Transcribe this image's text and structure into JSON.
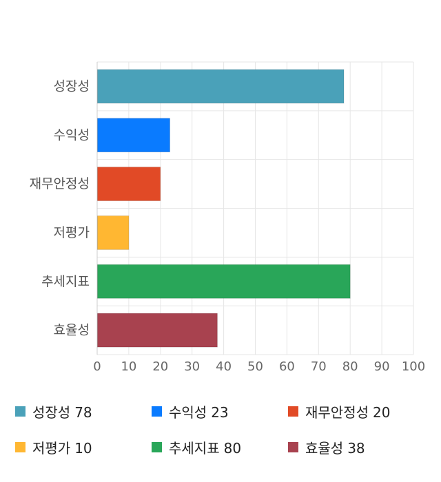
{
  "chart_data": {
    "type": "bar",
    "orientation": "horizontal",
    "categories": [
      "성장성",
      "수익성",
      "재무안정성",
      "저평가",
      "추세지표",
      "효율성"
    ],
    "values": [
      78,
      23,
      20,
      10,
      80,
      38
    ],
    "colors": [
      "#4aa1b9",
      "#0a7bff",
      "#e14a26",
      "#ffb732",
      "#29a659",
      "#a8424f"
    ],
    "xlim": [
      0,
      100
    ],
    "xticks": [
      0,
      10,
      20,
      30,
      40,
      50,
      60,
      70,
      80,
      90,
      100
    ],
    "grid": true,
    "legend_position": "bottom"
  }
}
